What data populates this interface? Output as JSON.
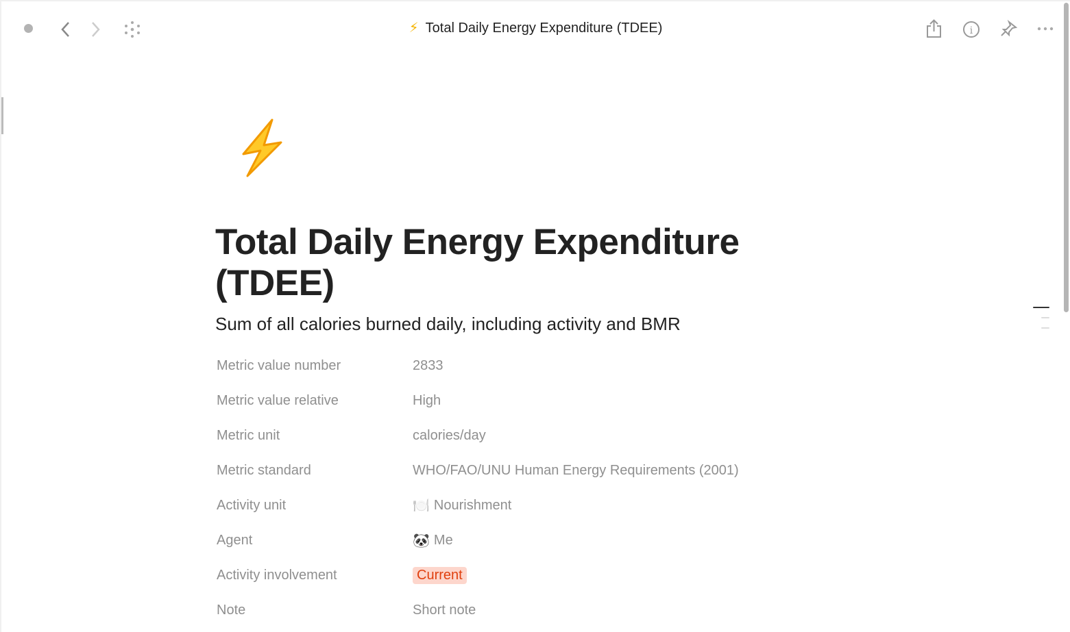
{
  "toolbar": {
    "title": "Total Daily Energy Expenditure (TDEE)",
    "title_icon": "⚡",
    "left_icons": [
      "circle-dot-icon",
      "back-icon",
      "forward-icon",
      "dots-grid-icon"
    ],
    "right_icons": [
      "share-icon",
      "info-icon",
      "pin-icon",
      "more-icon"
    ]
  },
  "page": {
    "icon": "⚡",
    "title": "Total Daily Energy Expenditure (TDEE)",
    "subtitle": "Sum of all calories burned daily, including activity and BMR"
  },
  "properties": [
    {
      "label": "Metric value number",
      "value": "2833"
    },
    {
      "label": "Metric value relative",
      "value": "High"
    },
    {
      "label": "Metric unit",
      "value": "calories/day"
    },
    {
      "label": "Metric standard",
      "value": "WHO/FAO/UNU Human Energy Requirements (2001)"
    },
    {
      "label": "Activity unit",
      "value": "Nourishment",
      "emoji": "🍽️"
    },
    {
      "label": "Agent",
      "value": "Me",
      "emoji": "🐼"
    },
    {
      "label": "Activity involvement",
      "value": "Current",
      "tag_color": "#fdd6cc",
      "tag_text_color": "#e0400f"
    },
    {
      "label": "Note",
      "value": "Short note"
    }
  ]
}
